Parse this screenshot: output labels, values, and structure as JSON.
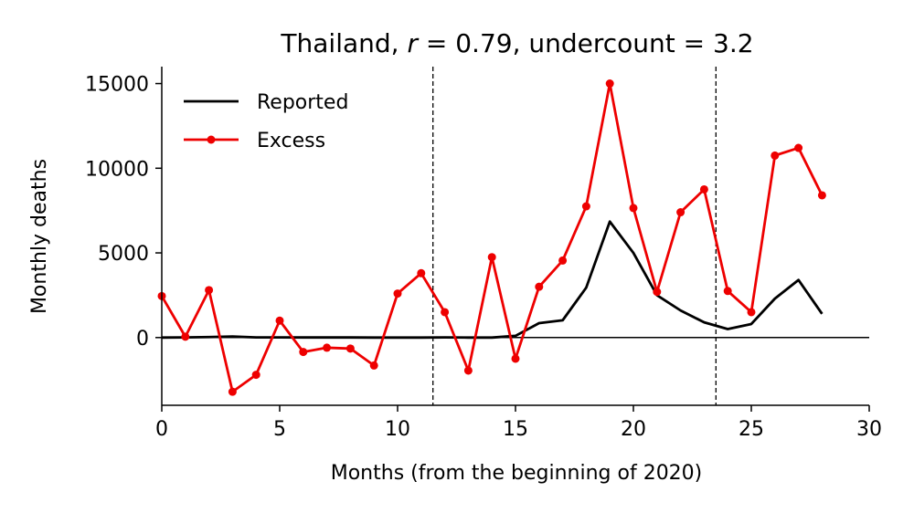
{
  "chart_data": {
    "type": "line",
    "title": {
      "country": "Thailand, ",
      "r_symbol": "r",
      "r_text": " = 0.79, undercount = 3.2"
    },
    "xlabel": "Months (from the beginning of 2020)",
    "ylabel": "Monthly deaths",
    "xlim": [
      0,
      30
    ],
    "ylim": [
      -4000,
      16000
    ],
    "xticks": [
      0,
      5,
      10,
      15,
      20,
      25,
      30
    ],
    "yticks": [
      0,
      5000,
      10000,
      15000
    ],
    "zero_line": true,
    "vlines": [
      11.5,
      23.5
    ],
    "grid": false,
    "legend_position": "top-left",
    "series": [
      {
        "name": "Reported",
        "color": "#000000",
        "marker": false,
        "x": [
          0,
          1,
          2,
          3,
          4,
          5,
          6,
          7,
          8,
          9,
          10,
          11,
          12,
          13,
          14,
          15,
          16,
          17,
          18,
          19,
          20,
          21,
          22,
          23,
          24,
          25,
          26,
          27,
          28
        ],
        "y": [
          0,
          10,
          30,
          60,
          10,
          10,
          5,
          5,
          5,
          0,
          0,
          0,
          10,
          0,
          0,
          100,
          850,
          1020,
          2950,
          6850,
          5000,
          2500,
          1600,
          900,
          500,
          800,
          2300,
          3400,
          1400
        ]
      },
      {
        "name": "Excess",
        "color": "#ee0000",
        "marker": true,
        "x": [
          0,
          1,
          2,
          3,
          4,
          5,
          6,
          7,
          8,
          9,
          10,
          11,
          12,
          13,
          14,
          15,
          16,
          17,
          18,
          19,
          20,
          21,
          22,
          23,
          24,
          25,
          26,
          27,
          28
        ],
        "y": [
          2450,
          50,
          2800,
          -3200,
          -2200,
          1000,
          -850,
          -600,
          -650,
          -1650,
          2600,
          3800,
          1500,
          -1950,
          4750,
          -1250,
          3000,
          4550,
          7750,
          15000,
          7650,
          2700,
          7400,
          8750,
          2750,
          1500,
          10750,
          11200,
          8400
        ]
      }
    ]
  }
}
